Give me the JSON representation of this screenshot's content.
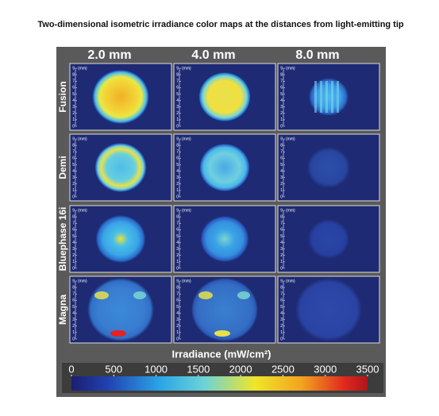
{
  "chart_data": {
    "type": "heatmap-grid",
    "title": "Two-dimensional isometric irradiance color maps at the distances from light-emitting tip",
    "columns": [
      "2.0 mm",
      "4.0 mm",
      "8.0 mm"
    ],
    "rows": [
      "Fusion",
      "Demi",
      "Bluephase 16i",
      "Magna"
    ],
    "ruler_ticks": [
      0,
      1,
      2,
      3,
      4,
      5,
      6,
      7,
      8,
      9
    ],
    "ruler_unit": "(mm)",
    "colorbar": {
      "label": "Irradiance (mW/cm²)",
      "lim": [
        0,
        3500
      ],
      "ticks": [
        0,
        500,
        1000,
        1500,
        2000,
        2500,
        3000,
        3500
      ]
    }
  }
}
